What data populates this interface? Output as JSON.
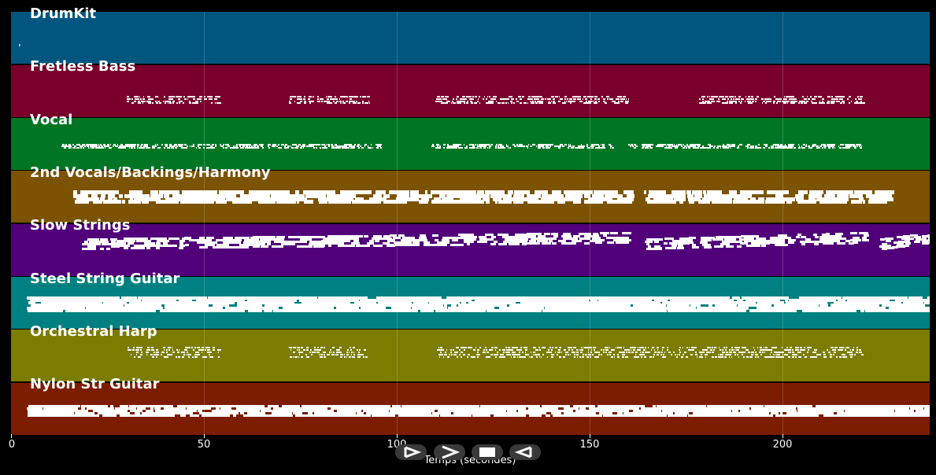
{
  "timeline": {
    "axis_title": "Temps (secondes)",
    "ticks": [
      "0",
      "50",
      "100",
      "150",
      "200"
    ],
    "tick_values": [
      0,
      50,
      100,
      150,
      200
    ],
    "max_time": 238
  },
  "tracks": [
    {
      "name": "DrumKit",
      "color": "#00567e"
    },
    {
      "name": "Fretless Bass",
      "color": "#7a002c"
    },
    {
      "name": "Vocal",
      "color": "#007625"
    },
    {
      "name": "2nd Vocals/Backings/Harmony",
      "color": "#7c5302"
    },
    {
      "name": "Slow Strings",
      "color": "#51007a"
    },
    {
      "name": "Steel String Guitar",
      "color": "#008080"
    },
    {
      "name": "Orchestral Harp",
      "color": "#7b7c00"
    },
    {
      "name": "Nylon Str Guitar",
      "color": "#7c1c00"
    }
  ],
  "playback_controls": [
    {
      "name": "play-icon"
    },
    {
      "name": "forward-icon"
    },
    {
      "name": "stop-icon"
    },
    {
      "name": "back-icon"
    }
  ]
}
